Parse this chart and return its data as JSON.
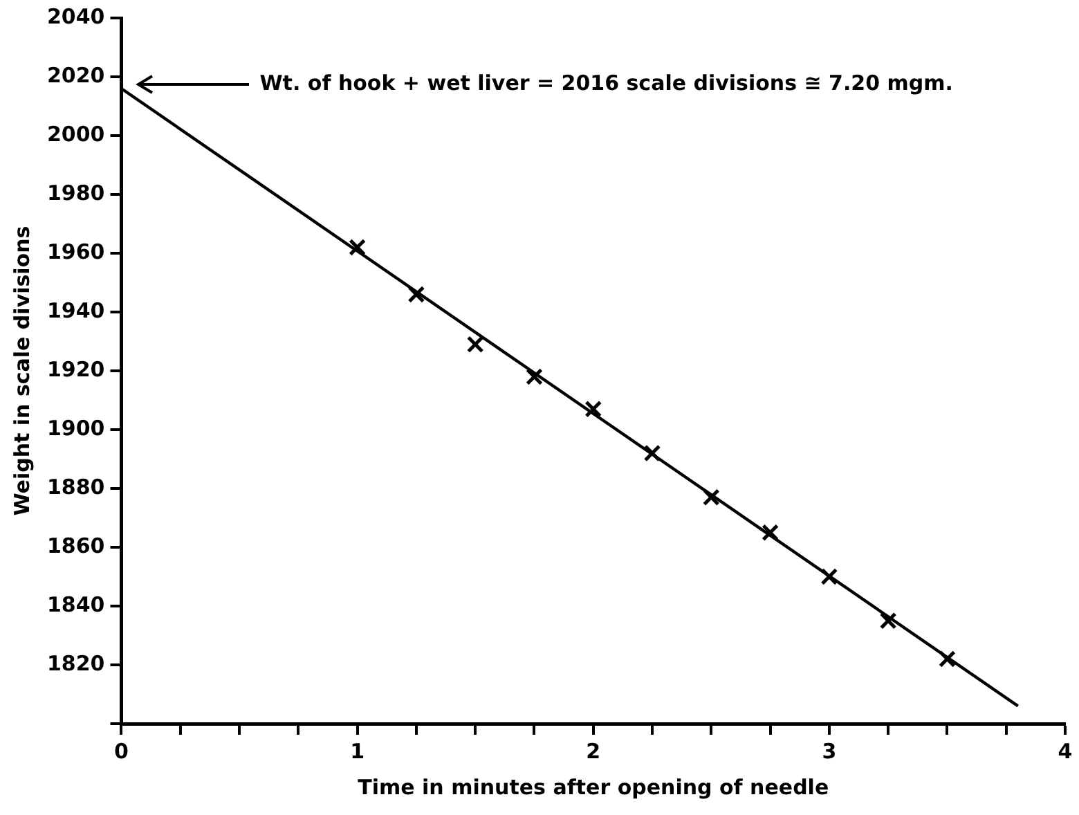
{
  "chart_data": {
    "type": "scatter",
    "xlabel": "Time in minutes after opening of needle",
    "ylabel": "Weight in scale divisions",
    "annotations": [
      "Wt. of hook + wet liver = 2016 scale divisions ≅ 7.20 mgm."
    ],
    "x": [
      1,
      1.25,
      1.5,
      1.75,
      2,
      2.25,
      2.5,
      2.75,
      3,
      3.25,
      3.5
    ],
    "series": [
      {
        "color": "#000000",
        "marker": "cross",
        "values": [
          1962,
          1946,
          1929,
          1918,
          1907,
          1892,
          1877,
          1865,
          1850,
          1835,
          1822
        ]
      },
      {
        "type": "line",
        "color": "#000000",
        "marker": "none",
        "x": [
          0,
          3.8
        ],
        "values": [
          2016,
          1806
        ]
      }
    ],
    "xlim": [
      0,
      4
    ],
    "ylim": [
      1800,
      2040
    ],
    "xticks": [
      0,
      {
        "value": 0.25,
        "label": null
      },
      {
        "value": 0.5,
        "label": null
      },
      {
        "value": 0.75,
        "label": null
      },
      1,
      {
        "value": 1.25,
        "label": null
      },
      {
        "value": 1.5,
        "label": null
      },
      {
        "value": 1.75,
        "label": null
      },
      2,
      {
        "value": 2.25,
        "label": null
      },
      {
        "value": 2.5,
        "label": null
      },
      {
        "value": 2.75,
        "label": null
      },
      3,
      {
        "value": 3.25,
        "label": null
      },
      {
        "value": 3.5,
        "label": null
      },
      {
        "value": 3.75,
        "label": null
      },
      4
    ],
    "yticks": [
      {
        "value": 1800,
        "label": null
      },
      1820,
      1840,
      1860,
      1880,
      1900,
      1920,
      1940,
      1960,
      1980,
      2000,
      2020,
      2040
    ],
    "grid": false,
    "legend": false
  }
}
